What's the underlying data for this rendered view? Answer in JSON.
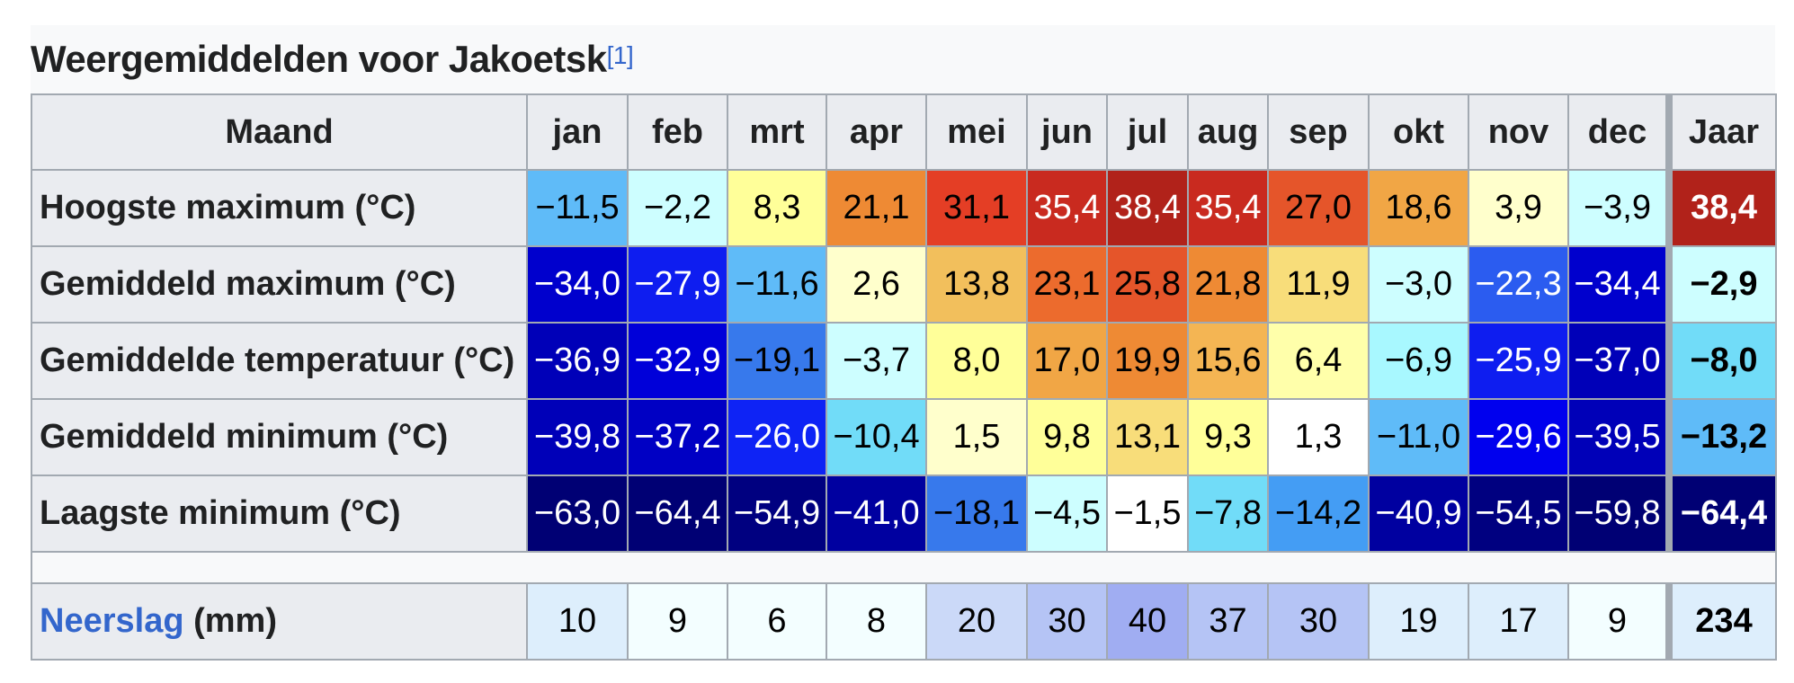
{
  "caption": {
    "title": "Weergemiddelden voor Jakoetsk",
    "reference": "[1]"
  },
  "header": {
    "row_label": "Maand",
    "months": [
      "jan",
      "feb",
      "mrt",
      "apr",
      "mei",
      "jun",
      "jul",
      "aug",
      "sep",
      "okt",
      "nov",
      "dec"
    ],
    "year": "Jaar"
  },
  "rows": [
    {
      "label": "Hoogste maximum (°C)",
      "values": [
        "−11,5",
        "−2,2",
        "8,3",
        "21,1",
        "31,1",
        "35,4",
        "38,4",
        "35,4",
        "27,0",
        "18,6",
        "3,9",
        "−3,9"
      ],
      "year": "38,4",
      "colors": [
        "#5fbbf8",
        "#cdfeff",
        "#ffff99",
        "#ee8a34",
        "#e43e25",
        "#c92a1f",
        "#b1221a",
        "#c92a1f",
        "#e5552a",
        "#f1a645",
        "#ffffcc",
        "#cdfeff"
      ],
      "year_color": "#b1221a",
      "text_colors": [
        "#000",
        "#000",
        "#000",
        "#000",
        "#000",
        "#fff",
        "#fff",
        "#fff",
        "#000",
        "#000",
        "#000",
        "#000"
      ],
      "year_text_color": "#fff"
    },
    {
      "label": "Gemiddeld maximum (°C)",
      "values": [
        "−34,0",
        "−27,9",
        "−11,6",
        "2,6",
        "13,8",
        "23,1",
        "25,8",
        "21,8",
        "11,9",
        "−3,0",
        "−22,3",
        "−34,4"
      ],
      "year": "−2,9",
      "colors": [
        "#0000cd",
        "#0e1df0",
        "#5fbbf8",
        "#ffffcc",
        "#f2bf5c",
        "#ec6b2d",
        "#e5552a",
        "#ee8a34",
        "#f8dd7a",
        "#cdfeff",
        "#2b5cf0",
        "#0000cd"
      ],
      "year_color": "#cdfeff",
      "text_colors": [
        "#fff",
        "#fff",
        "#000",
        "#000",
        "#000",
        "#000",
        "#000",
        "#000",
        "#000",
        "#000",
        "#fff",
        "#fff"
      ],
      "year_text_color": "#000"
    },
    {
      "label": "Gemiddelde temperatuur (°C)",
      "values": [
        "−36,9",
        "−32,9",
        "−19,1",
        "−3,7",
        "8,0",
        "17,0",
        "19,9",
        "15,6",
        "6,4",
        "−6,9",
        "−25,9",
        "−37,0"
      ],
      "year": "−8,0",
      "colors": [
        "#0000b8",
        "#0000d9",
        "#3779ec",
        "#cdfeff",
        "#ffff99",
        "#f1a645",
        "#ee8a34",
        "#f4b553",
        "#ffffaa",
        "#a8f8ff",
        "#0e1df0",
        "#0000b8"
      ],
      "year_color": "#71dcf8",
      "text_colors": [
        "#fff",
        "#fff",
        "#000",
        "#000",
        "#000",
        "#000",
        "#000",
        "#000",
        "#000",
        "#000",
        "#fff",
        "#fff"
      ],
      "year_text_color": "#000"
    },
    {
      "label": "Gemiddeld minimum (°C)",
      "values": [
        "−39,8",
        "−37,2",
        "−26,0",
        "−10,4",
        "1,5",
        "9,8",
        "13,1",
        "9,3",
        "1,3",
        "−11,0",
        "−29,6",
        "−39,5"
      ],
      "year": "−13,2",
      "colors": [
        "#0000b8",
        "#0000c4",
        "#0e23f5",
        "#71dcf8",
        "#ffffcc",
        "#ffff99",
        "#f8dd7a",
        "#ffff99",
        "#ffffff",
        "#5fbbf8",
        "#0000ee",
        "#0000b8"
      ],
      "year_color": "#5fbbf8",
      "text_colors": [
        "#fff",
        "#fff",
        "#fff",
        "#000",
        "#000",
        "#000",
        "#000",
        "#000",
        "#000",
        "#000",
        "#fff",
        "#fff"
      ],
      "year_text_color": "#000"
    },
    {
      "label": "Laagste minimum (°C)",
      "values": [
        "−63,0",
        "−64,4",
        "−54,9",
        "−41,0",
        "−18,1",
        "−4,5",
        "−1,5",
        "−7,8",
        "−14,2",
        "−40,9",
        "−54,5",
        "−59,8"
      ],
      "year": "−64,4",
      "colors": [
        "#000074",
        "#000074",
        "#000080",
        "#0000a0",
        "#3779ec",
        "#cdfeff",
        "#ffffff",
        "#71dcf8",
        "#449df4",
        "#0000a0",
        "#000080",
        "#000074"
      ],
      "year_color": "#000074",
      "text_colors": [
        "#fff",
        "#fff",
        "#fff",
        "#fff",
        "#000",
        "#000",
        "#000",
        "#000",
        "#000",
        "#fff",
        "#fff",
        "#fff"
      ],
      "year_text_color": "#fff"
    }
  ],
  "precipitation": {
    "label_link": "Neerslag",
    "label_unit": " (mm)",
    "values": [
      "10",
      "9",
      "6",
      "8",
      "20",
      "30",
      "40",
      "37",
      "30",
      "19",
      "17",
      "9"
    ],
    "year": "234",
    "colors": [
      "#ddeefc",
      "#f3feff",
      "#f3feff",
      "#f3feff",
      "#cbd9f8",
      "#b5c4f5",
      "#a0adf2",
      "#b5c4f5",
      "#b5c4f5",
      "#ddeefc",
      "#ddeefc",
      "#f3feff"
    ],
    "year_color": "#ddeefc"
  },
  "chart_data": {
    "type": "table",
    "title": "Weergemiddelden voor Jakoetsk",
    "columns": [
      "Maand",
      "jan",
      "feb",
      "mrt",
      "apr",
      "mei",
      "jun",
      "jul",
      "aug",
      "sep",
      "okt",
      "nov",
      "dec",
      "Jaar"
    ],
    "rows": [
      [
        "Hoogste maximum (°C)",
        -11.5,
        -2.2,
        8.3,
        21.1,
        31.1,
        35.4,
        38.4,
        35.4,
        27.0,
        18.6,
        3.9,
        -3.9,
        38.4
      ],
      [
        "Gemiddeld maximum (°C)",
        -34.0,
        -27.9,
        -11.6,
        2.6,
        13.8,
        23.1,
        25.8,
        21.8,
        11.9,
        -3.0,
        -22.3,
        -34.4,
        -2.9
      ],
      [
        "Gemiddelde temperatuur (°C)",
        -36.9,
        -32.9,
        -19.1,
        -3.7,
        8.0,
        17.0,
        19.9,
        15.6,
        6.4,
        -6.9,
        -25.9,
        -37.0,
        -8.0
      ],
      [
        "Gemiddeld minimum (°C)",
        -39.8,
        -37.2,
        -26.0,
        -10.4,
        1.5,
        9.8,
        13.1,
        9.3,
        1.3,
        -11.0,
        -29.6,
        -39.5,
        -13.2
      ],
      [
        "Laagste minimum (°C)",
        -63.0,
        -64.4,
        -54.9,
        -41.0,
        -18.1,
        -4.5,
        -1.5,
        -7.8,
        -14.2,
        -40.9,
        -54.5,
        -59.8,
        -64.4
      ],
      [
        "Neerslag (mm)",
        10,
        9,
        6,
        8,
        20,
        30,
        40,
        37,
        30,
        19,
        17,
        9,
        234
      ]
    ]
  }
}
